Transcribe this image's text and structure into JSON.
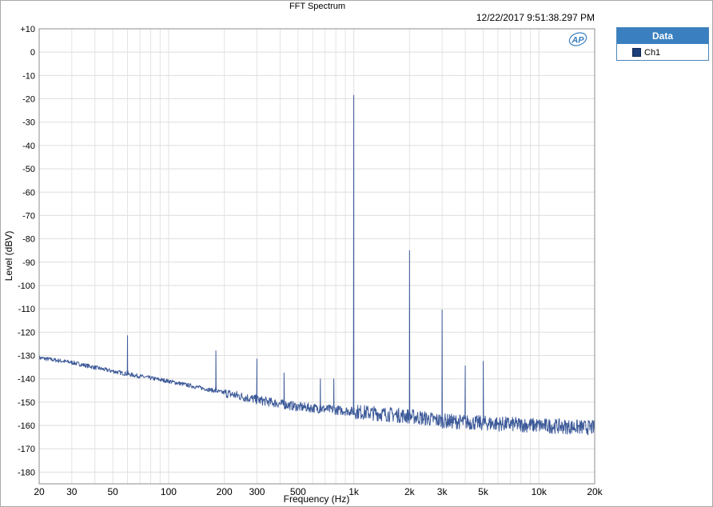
{
  "timestamp": "12/22/2017 9:51:38.297 PM",
  "logo_text": "AP",
  "legend": {
    "header": "Data",
    "items": [
      {
        "label": "Ch1",
        "color": "#1d3f7a"
      }
    ]
  },
  "chart_data": {
    "type": "line",
    "title": "FFT Spectrum",
    "xlabel": "Frequency (Hz)",
    "ylabel": "Level (dBV)",
    "x_scale": "log",
    "xlim": [
      20,
      20000
    ],
    "ylim": [
      -185,
      10
    ],
    "grid": true,
    "legend_position": "right",
    "x_tick_values": [
      20,
      30,
      50,
      100,
      200,
      300,
      500,
      1000,
      2000,
      3000,
      5000,
      10000,
      20000
    ],
    "x_tick_labels": [
      "20",
      "30",
      "50",
      "100",
      "200",
      "300",
      "500",
      "1k",
      "2k",
      "3k",
      "5k",
      "10k",
      "20k"
    ],
    "y_tick_values": [
      10,
      0,
      -10,
      -20,
      -30,
      -40,
      -50,
      -60,
      -70,
      -80,
      -90,
      -100,
      -110,
      -120,
      -130,
      -140,
      -150,
      -160,
      -170,
      -180
    ],
    "y_tick_labels": [
      "+10",
      "0",
      "-10",
      "-20",
      "-30",
      "-40",
      "-50",
      "-60",
      "-70",
      "-80",
      "-90",
      "-100",
      "-110",
      "-120",
      "-130",
      "-140",
      "-150",
      "-160",
      "-170",
      "-180"
    ],
    "series": [
      {
        "name": "Ch1",
        "color": "#3d5a99",
        "noise_floor": [
          [
            20,
            -131
          ],
          [
            30,
            -133
          ],
          [
            45,
            -136
          ],
          [
            60,
            -138
          ],
          [
            100,
            -141
          ],
          [
            200,
            -146
          ],
          [
            300,
            -149
          ],
          [
            500,
            -152
          ],
          [
            1000,
            -154
          ],
          [
            2000,
            -156
          ],
          [
            3000,
            -158
          ],
          [
            5000,
            -159
          ],
          [
            10000,
            -160
          ],
          [
            20000,
            -161
          ]
        ],
        "peaks": [
          [
            60,
            -121.5
          ],
          [
            180,
            -128
          ],
          [
            300,
            -131.5
          ],
          [
            420,
            -137.5
          ],
          [
            660,
            -140
          ],
          [
            780,
            -140
          ],
          [
            1000,
            -18.5
          ],
          [
            2000,
            -85
          ],
          [
            3000,
            -110.5
          ],
          [
            4000,
            -134.5
          ],
          [
            5000,
            -132.5
          ]
        ]
      }
    ]
  }
}
